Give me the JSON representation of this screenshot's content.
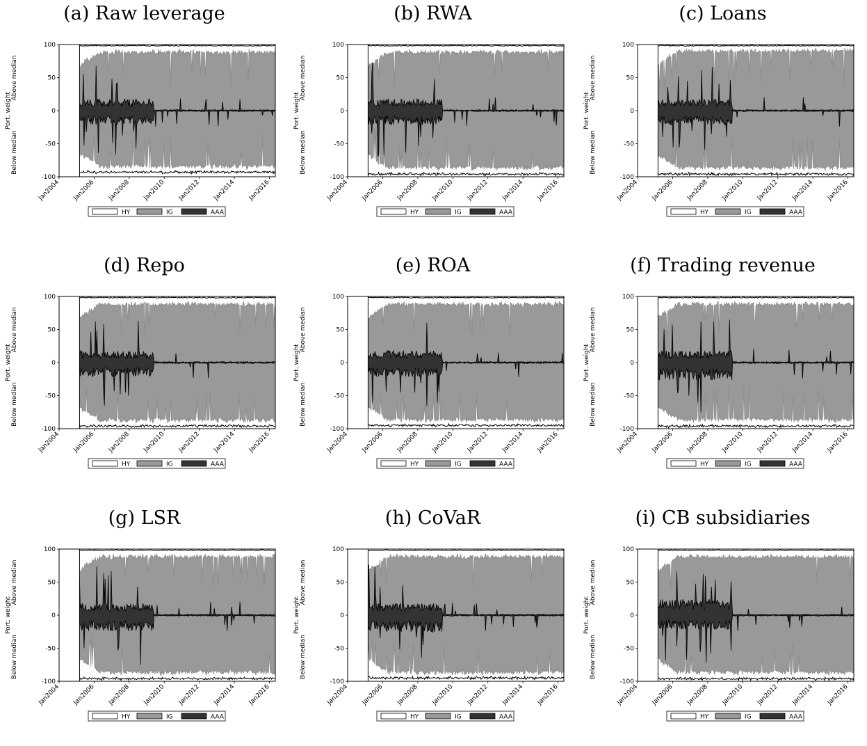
{
  "figure": {
    "series_names": [
      "HY",
      "IG",
      "AAA"
    ],
    "series_colors": {
      "HY": "#ffffff",
      "IG": "#999999",
      "AAA": "#333333"
    },
    "ylabel_main": "Port. weight",
    "ylabel_above": "Above median",
    "ylabel_below": "Below median"
  },
  "chart_data": [
    {
      "title": "(a) Raw leverage",
      "type": "area",
      "start": "2005-03",
      "end": "2016-05",
      "xticks": [
        "Jan2004",
        "Jan2006",
        "Jan2008",
        "Jan2010",
        "Jan2012",
        "Jan2014",
        "Jan2016"
      ],
      "yticks": [
        -100,
        -50,
        0,
        50,
        100
      ],
      "ylim": [
        -100,
        100
      ],
      "xlim": [
        "2004-01",
        "2016-05"
      ],
      "ylabel": "Port. weight",
      "ylabel_above": "Above median",
      "ylabel_below": "Below median",
      "legend": [
        "HY",
        "IG",
        "AAA"
      ],
      "legend_position": "bottom-center",
      "series": [
        {
          "name": "HY",
          "values_above_approx": 99,
          "values_below_approx": -93
        },
        {
          "name": "IG",
          "values_above_approx": 88,
          "values_below_approx": -84
        },
        {
          "name": "AAA",
          "active_until": "2009-06",
          "values_above_approx": 15,
          "values_below_approx": -18
        }
      ]
    },
    {
      "title": "(b) RWA",
      "type": "area",
      "start": "2005-03",
      "end": "2016-05",
      "xticks": [
        "Jan2004",
        "Jan2006",
        "Jan2008",
        "Jan2010",
        "Jan2012",
        "Jan2014",
        "Jan2016"
      ],
      "yticks": [
        -100,
        -50,
        0,
        50,
        100
      ],
      "ylim": [
        -100,
        100
      ],
      "xlim": [
        "2004-01",
        "2016-05"
      ],
      "ylabel": "Port. weight",
      "ylabel_above": "Above median",
      "ylabel_below": "Below median",
      "legend": [
        "HY",
        "IG",
        "AAA"
      ],
      "legend_position": "bottom-center",
      "series": [
        {
          "name": "HY",
          "values_above_approx": 99,
          "values_below_approx": -96
        },
        {
          "name": "IG",
          "values_above_approx": 88,
          "values_below_approx": -86
        },
        {
          "name": "AAA",
          "active_until": "2009-06",
          "values_above_approx": 15,
          "values_below_approx": -18
        }
      ]
    },
    {
      "title": "(c) Loans",
      "type": "area",
      "start": "2005-03",
      "end": "2016-05",
      "xticks": [
        "Jan2004",
        "Jan2006",
        "Jan2008",
        "Jan2010",
        "Jan2012",
        "Jan2014",
        "Jan2016"
      ],
      "yticks": [
        -100,
        -50,
        0,
        50,
        100
      ],
      "ylim": [
        -100,
        100
      ],
      "xlim": [
        "2004-01",
        "2016-05"
      ],
      "ylabel": "Port. weight",
      "ylabel_above": "Above median",
      "ylabel_below": "Below median",
      "legend": [
        "HY",
        "IG",
        "AAA"
      ],
      "legend_position": "bottom-center",
      "series": [
        {
          "name": "HY",
          "values_above_approx": 99,
          "values_below_approx": -96
        },
        {
          "name": "IG",
          "values_above_approx": 90,
          "values_below_approx": -86
        },
        {
          "name": "AAA",
          "active_until": "2009-06",
          "values_above_approx": 15,
          "values_below_approx": -18
        }
      ]
    },
    {
      "title": "(d) Repo",
      "type": "area",
      "start": "2005-03",
      "end": "2016-05",
      "xticks": [
        "Jan2004",
        "Jan2006",
        "Jan2008",
        "Jan2010",
        "Jan2012",
        "Jan2014",
        "Jan2016"
      ],
      "yticks": [
        -100,
        -50,
        0,
        50,
        100
      ],
      "ylim": [
        -100,
        100
      ],
      "xlim": [
        "2004-01",
        "2016-05"
      ],
      "ylabel": "Port. weight",
      "ylabel_above": "Above median",
      "ylabel_below": "Below median",
      "legend": [
        "HY",
        "IG",
        "AAA"
      ],
      "legend_position": "bottom-center",
      "series": [
        {
          "name": "HY",
          "values_above_approx": 99,
          "values_below_approx": -96
        },
        {
          "name": "IG",
          "values_above_approx": 88,
          "values_below_approx": -87
        },
        {
          "name": "AAA",
          "active_until": "2009-06",
          "values_above_approx": 15,
          "values_below_approx": -18
        }
      ]
    },
    {
      "title": "(e) ROA",
      "type": "area",
      "start": "2005-03",
      "end": "2016-05",
      "xticks": [
        "Jan2004",
        "Jan2006",
        "Jan2008",
        "Jan2010",
        "Jan2012",
        "Jan2014",
        "Jan2016"
      ],
      "yticks": [
        -100,
        -50,
        0,
        50,
        100
      ],
      "ylim": [
        -100,
        100
      ],
      "xlim": [
        "2004-01",
        "2016-05"
      ],
      "ylabel": "Port. weight",
      "ylabel_above": "Above median",
      "ylabel_below": "Below median",
      "legend": [
        "HY",
        "IG",
        "AAA"
      ],
      "legend_position": "bottom-center",
      "series": [
        {
          "name": "HY",
          "values_above_approx": 99,
          "values_below_approx": -95
        },
        {
          "name": "IG",
          "values_above_approx": 88,
          "values_below_approx": -86
        },
        {
          "name": "AAA",
          "active_until": "2009-06",
          "values_above_approx": 15,
          "values_below_approx": -18
        }
      ]
    },
    {
      "title": "(f) Trading revenue",
      "type": "area",
      "start": "2005-03",
      "end": "2016-05",
      "xticks": [
        "Jan2004",
        "Jan2006",
        "Jan2008",
        "Jan2010",
        "Jan2012",
        "Jan2014",
        "Jan2016"
      ],
      "yticks": [
        -100,
        -50,
        0,
        50,
        100
      ],
      "ylim": [
        -100,
        100
      ],
      "xlim": [
        "2004-01",
        "2016-05"
      ],
      "ylabel": "Port. weight",
      "ylabel_above": "Above median",
      "ylabel_below": "Below median",
      "legend": [
        "HY",
        "IG",
        "AAA"
      ],
      "legend_position": "bottom-center",
      "series": [
        {
          "name": "HY",
          "values_above_approx": 99,
          "values_below_approx": -96
        },
        {
          "name": "IG",
          "values_above_approx": 88,
          "values_below_approx": -86
        },
        {
          "name": "AAA",
          "active_until": "2009-06",
          "values_above_approx": 15,
          "values_below_approx": -22
        }
      ]
    },
    {
      "title": "(g) LSR",
      "type": "area",
      "start": "2005-03",
      "end": "2016-05",
      "xticks": [
        "Jan2004",
        "Jan2006",
        "Jan2008",
        "Jan2010",
        "Jan2012",
        "Jan2014",
        "Jan2016"
      ],
      "yticks": [
        -100,
        -50,
        0,
        50,
        100
      ],
      "ylim": [
        -100,
        100
      ],
      "xlim": [
        "2004-01",
        "2016-05"
      ],
      "ylabel": "Port. weight",
      "ylabel_above": "Above median",
      "ylabel_below": "Below median",
      "legend": [
        "HY",
        "IG",
        "AAA"
      ],
      "legend_position": "bottom-center",
      "series": [
        {
          "name": "HY",
          "values_above_approx": 99,
          "values_below_approx": -96
        },
        {
          "name": "IG",
          "values_above_approx": 88,
          "values_below_approx": -86
        },
        {
          "name": "AAA",
          "active_until": "2009-06",
          "values_above_approx": 15,
          "values_below_approx": -20
        }
      ]
    },
    {
      "title": "(h) CoVaR",
      "type": "area",
      "start": "2005-03",
      "end": "2016-05",
      "xticks": [
        "Jan2004",
        "Jan2006",
        "Jan2008",
        "Jan2010",
        "Jan2012",
        "Jan2014",
        "Jan2016"
      ],
      "yticks": [
        -100,
        -50,
        0,
        50,
        100
      ],
      "ylim": [
        -100,
        100
      ],
      "xlim": [
        "2004-01",
        "2016-05"
      ],
      "ylabel": "Port. weight",
      "ylabel_above": "Above median",
      "ylabel_below": "Below median",
      "legend": [
        "HY",
        "IG",
        "AAA"
      ],
      "legend_position": "bottom-center",
      "series": [
        {
          "name": "HY",
          "values_above_approx": 99,
          "values_below_approx": -95
        },
        {
          "name": "IG",
          "values_above_approx": 88,
          "values_below_approx": -86
        },
        {
          "name": "AAA",
          "active_until": "2009-06",
          "values_above_approx": 15,
          "values_below_approx": -22
        }
      ]
    },
    {
      "title": "(i) CB subsidiaries",
      "type": "area",
      "start": "2005-03",
      "end": "2016-05",
      "xticks": [
        "Jan2004",
        "Jan2006",
        "Jan2008",
        "Jan2010",
        "Jan2012",
        "Jan2014",
        "Jan2016"
      ],
      "yticks": [
        -100,
        -50,
        0,
        50,
        100
      ],
      "ylim": [
        -100,
        100
      ],
      "xlim": [
        "2004-01",
        "2016-05"
      ],
      "ylabel": "Port. weight",
      "ylabel_above": "Above median",
      "ylabel_below": "Below median",
      "legend": [
        "HY",
        "IG",
        "AAA"
      ],
      "legend_position": "bottom-center",
      "series": [
        {
          "name": "HY",
          "values_above_approx": 99,
          "values_below_approx": -96
        },
        {
          "name": "IG",
          "values_above_approx": 88,
          "values_below_approx": -86
        },
        {
          "name": "AAA",
          "active_until": "2009-06",
          "values_above_approx": 20,
          "values_below_approx": -18
        }
      ]
    }
  ]
}
